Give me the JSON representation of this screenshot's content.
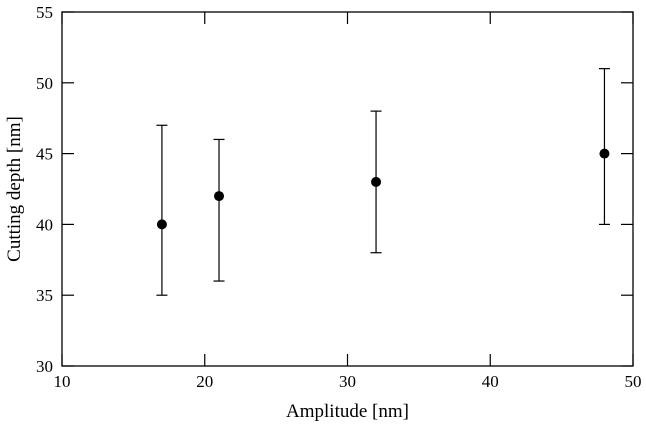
{
  "chart_data": {
    "type": "scatter",
    "title": "",
    "xlabel": "Amplitude [nm]",
    "ylabel": "Cutting depth [nm]",
    "xlim": [
      10,
      50
    ],
    "ylim": [
      30,
      55
    ],
    "xticks": [
      10,
      20,
      30,
      40,
      50
    ],
    "yticks": [
      30,
      35,
      40,
      45,
      50,
      55
    ],
    "x_tick_labels": [
      "10",
      "20",
      "30",
      "40",
      "50"
    ],
    "y_tick_labels": [
      "30",
      "35",
      "40",
      "45",
      "50",
      "55"
    ],
    "grid": false,
    "legend": "none",
    "marker_color": "#000000",
    "points": [
      {
        "x": 17,
        "y": 40,
        "y_low": 35,
        "y_high": 47
      },
      {
        "x": 21,
        "y": 42,
        "y_low": 36,
        "y_high": 46
      },
      {
        "x": 32,
        "y": 43,
        "y_low": 38,
        "y_high": 48
      },
      {
        "x": 48,
        "y": 45,
        "y_low": 40,
        "y_high": 51
      }
    ]
  }
}
